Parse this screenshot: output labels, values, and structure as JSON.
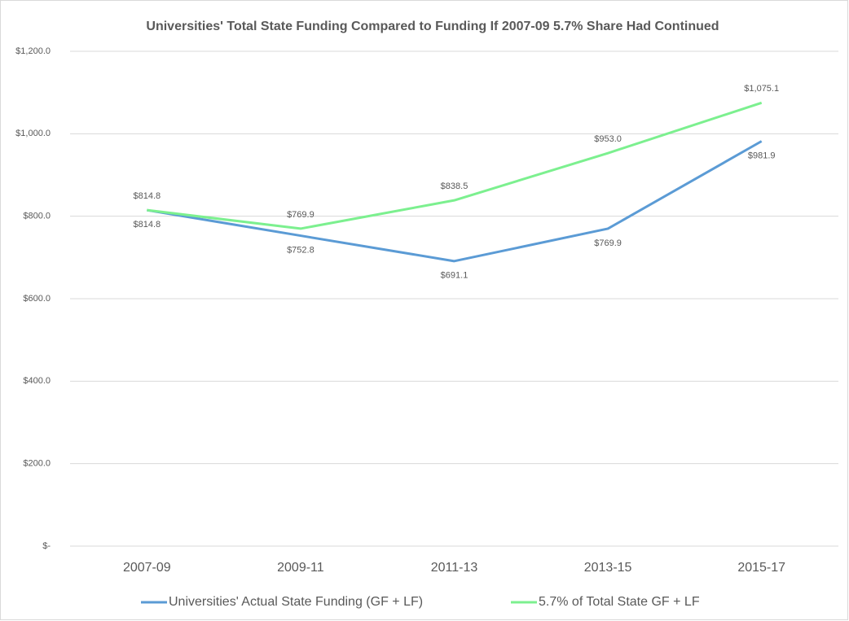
{
  "chart_data": {
    "type": "line",
    "title": "Universities' Total State Funding Compared to Funding If 2007-09 5.7% Share Had Continued",
    "categories": [
      "2007-09",
      "2009-11",
      "2011-13",
      "2013-15",
      "2015-17"
    ],
    "series": [
      {
        "name": "Universities' Actual State Funding (GF + LF)",
        "color": "#5b9bd5",
        "values": [
          814.8,
          752.8,
          691.1,
          769.9,
          981.9
        ],
        "value_labels": [
          "$814.8",
          "$752.8",
          "$691.1",
          "$769.9",
          "$981.9"
        ]
      },
      {
        "name": "5.7% of Total State GF + LF",
        "color": "#7cf08f",
        "values": [
          814.8,
          769.9,
          838.5,
          953.0,
          1075.1
        ],
        "value_labels": [
          "$814.8",
          "$769.9",
          "$838.5",
          "$953.0",
          "$1,075.1"
        ]
      }
    ],
    "ylim": [
      0,
      1200
    ],
    "yticks": [
      {
        "value": 0,
        "label": "$-"
      },
      {
        "value": 200,
        "label": "$200.0"
      },
      {
        "value": 400,
        "label": "$400.0"
      },
      {
        "value": 600,
        "label": "$600.0"
      },
      {
        "value": 800,
        "label": "$800.0"
      },
      {
        "value": 1000,
        "label": "$1,000.0"
      },
      {
        "value": 1200,
        "label": "$1,200.0"
      }
    ],
    "grid": true,
    "legend": "bottom"
  }
}
